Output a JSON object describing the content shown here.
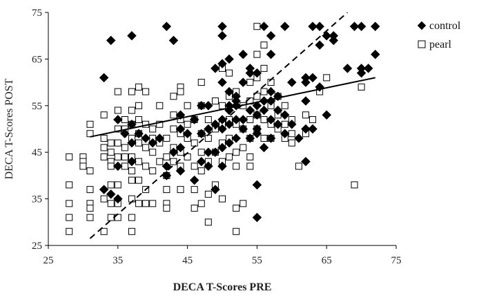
{
  "chart_data": {
    "type": "scatter",
    "xlabel": "DECA T-Scores PRE",
    "ylabel": "DECA T-Scores POST",
    "xlim": [
      25,
      75
    ],
    "ylim": [
      25,
      75
    ],
    "xticks": [
      "25",
      "35",
      "45",
      "55",
      "65",
      "75"
    ],
    "yticks": [
      "25",
      "35",
      "45",
      "55",
      "65",
      "75"
    ],
    "grid": false,
    "legend_position": "top-right",
    "series": [
      {
        "name": "control",
        "marker": "diamond-filled",
        "color": "#000000",
        "trendline": {
          "style": "solid",
          "x": [
            31,
            72
          ],
          "y": [
            48.3,
            61.0
          ]
        },
        "points": [
          [
            33,
            61
          ],
          [
            34,
            69
          ],
          [
            37,
            70
          ],
          [
            42,
            72
          ],
          [
            43,
            69
          ],
          [
            50,
            72
          ],
          [
            50,
            70
          ],
          [
            53,
            66
          ],
          [
            54,
            63
          ],
          [
            56,
            72
          ],
          [
            57,
            70
          ],
          [
            57,
            66
          ],
          [
            59,
            72
          ],
          [
            63,
            72
          ],
          [
            64,
            72
          ],
          [
            65,
            70
          ],
          [
            66,
            70
          ],
          [
            66,
            69
          ],
          [
            69,
            72
          ],
          [
            70,
            72
          ],
          [
            72,
            72
          ],
          [
            72,
            66
          ],
          [
            71,
            63
          ],
          [
            70,
            63
          ],
          [
            70,
            62
          ],
          [
            68,
            63
          ],
          [
            64,
            68
          ],
          [
            64,
            59
          ],
          [
            62,
            60
          ],
          [
            60,
            60
          ],
          [
            62,
            56
          ],
          [
            58,
            57
          ],
          [
            57,
            58
          ],
          [
            56,
            56
          ],
          [
            55,
            55
          ],
          [
            54,
            54
          ],
          [
            52,
            55
          ],
          [
            51,
            58
          ],
          [
            50,
            60
          ],
          [
            49,
            63
          ],
          [
            50,
            64
          ],
          [
            51,
            65
          ],
          [
            54,
            62
          ],
          [
            55,
            62
          ],
          [
            53,
            60
          ],
          [
            52,
            57
          ],
          [
            51,
            54
          ],
          [
            50,
            52
          ],
          [
            48,
            55
          ],
          [
            47,
            55
          ],
          [
            46,
            52
          ],
          [
            44,
            53
          ],
          [
            44,
            50
          ],
          [
            45,
            49
          ],
          [
            47,
            49
          ],
          [
            48,
            50
          ],
          [
            49,
            51
          ],
          [
            50,
            50
          ],
          [
            51,
            51
          ],
          [
            52,
            52
          ],
          [
            53,
            50
          ],
          [
            52,
            48
          ],
          [
            51,
            47
          ],
          [
            50,
            46
          ],
          [
            49,
            45
          ],
          [
            48,
            45
          ],
          [
            47,
            43
          ],
          [
            48,
            42
          ],
          [
            50,
            42
          ],
          [
            49,
            37
          ],
          [
            46,
            39
          ],
          [
            44,
            41
          ],
          [
            42,
            42
          ],
          [
            43,
            45
          ],
          [
            44,
            46
          ],
          [
            41,
            48
          ],
          [
            40,
            47
          ],
          [
            39,
            48
          ],
          [
            38,
            49
          ],
          [
            37,
            51
          ],
          [
            35,
            52
          ],
          [
            36,
            49
          ],
          [
            37,
            47
          ],
          [
            35,
            42
          ],
          [
            37,
            43
          ],
          [
            33,
            37
          ],
          [
            34,
            36
          ],
          [
            35,
            35
          ],
          [
            42,
            40
          ],
          [
            55,
            38
          ],
          [
            55,
            31
          ],
          [
            55,
            50
          ],
          [
            55,
            49
          ],
          [
            57,
            52
          ],
          [
            58,
            51
          ],
          [
            59,
            49
          ],
          [
            60,
            51
          ],
          [
            61,
            48
          ],
          [
            62,
            43
          ],
          [
            62,
            50
          ],
          [
            63,
            50
          ],
          [
            65,
            53
          ],
          [
            62,
            61
          ],
          [
            63,
            61
          ],
          [
            59,
            53
          ],
          [
            56,
            46
          ],
          [
            57,
            48
          ],
          [
            54,
            48
          ],
          [
            53,
            52
          ],
          [
            51,
            55
          ],
          [
            52,
            56
          ],
          [
            55,
            53
          ],
          [
            56,
            54
          ],
          [
            57,
            56
          ],
          [
            58,
            54
          ]
        ]
      },
      {
        "name": "pearl",
        "marker": "square-open",
        "color": "#000000",
        "trendline": {
          "style": "dashed",
          "x": [
            31,
            68
          ],
          "y": [
            26.5,
            75
          ]
        },
        "points": [
          [
            28,
            44
          ],
          [
            28,
            38
          ],
          [
            28,
            34
          ],
          [
            28,
            31
          ],
          [
            28,
            28
          ],
          [
            30,
            44
          ],
          [
            30,
            43
          ],
          [
            30,
            42
          ],
          [
            31,
            51
          ],
          [
            31,
            49
          ],
          [
            31,
            41
          ],
          [
            31,
            37
          ],
          [
            31,
            34
          ],
          [
            31,
            33
          ],
          [
            31,
            31
          ],
          [
            33,
            53
          ],
          [
            33,
            48
          ],
          [
            33,
            46
          ],
          [
            33,
            44
          ],
          [
            33,
            35
          ],
          [
            33,
            28
          ],
          [
            34,
            47
          ],
          [
            34,
            45
          ],
          [
            34,
            43
          ],
          [
            34,
            42
          ],
          [
            34,
            38
          ],
          [
            34,
            34
          ],
          [
            34,
            31
          ],
          [
            35,
            58
          ],
          [
            35,
            54
          ],
          [
            35,
            50
          ],
          [
            35,
            47
          ],
          [
            35,
            44
          ],
          [
            35,
            38
          ],
          [
            35,
            34
          ],
          [
            35,
            31
          ],
          [
            36,
            52
          ],
          [
            36,
            50
          ],
          [
            36,
            46
          ],
          [
            36,
            44
          ],
          [
            36,
            42
          ],
          [
            37,
            58
          ],
          [
            37,
            54
          ],
          [
            37,
            51
          ],
          [
            37,
            48
          ],
          [
            37,
            44
          ],
          [
            37,
            41
          ],
          [
            37,
            39
          ],
          [
            37,
            35
          ],
          [
            37,
            31
          ],
          [
            37,
            28
          ],
          [
            38,
            59
          ],
          [
            38,
            55
          ],
          [
            38,
            52
          ],
          [
            38,
            49
          ],
          [
            38,
            47
          ],
          [
            38,
            43
          ],
          [
            38,
            39
          ],
          [
            38,
            34
          ],
          [
            39,
            58
          ],
          [
            39,
            51
          ],
          [
            39,
            46
          ],
          [
            39,
            42
          ],
          [
            39,
            37
          ],
          [
            39,
            34
          ],
          [
            40,
            50
          ],
          [
            40,
            48
          ],
          [
            40,
            45
          ],
          [
            40,
            41
          ],
          [
            40,
            34
          ],
          [
            41,
            55
          ],
          [
            41,
            51
          ],
          [
            41,
            47
          ],
          [
            41,
            43
          ],
          [
            42,
            48
          ],
          [
            42,
            44
          ],
          [
            42,
            40
          ],
          [
            42,
            37
          ],
          [
            42,
            34
          ],
          [
            42,
            33
          ],
          [
            43,
            57
          ],
          [
            43,
            53
          ],
          [
            43,
            50
          ],
          [
            43,
            46
          ],
          [
            43,
            43
          ],
          [
            44,
            59
          ],
          [
            44,
            58
          ],
          [
            44,
            52
          ],
          [
            44,
            49
          ],
          [
            44,
            45
          ],
          [
            44,
            42
          ],
          [
            44,
            37
          ],
          [
            45,
            55
          ],
          [
            45,
            51
          ],
          [
            45,
            48
          ],
          [
            45,
            44
          ],
          [
            46,
            52
          ],
          [
            46,
            47
          ],
          [
            46,
            42
          ],
          [
            46,
            37
          ],
          [
            46,
            33
          ],
          [
            47,
            60
          ],
          [
            47,
            55
          ],
          [
            47,
            49
          ],
          [
            47,
            45
          ],
          [
            47,
            41
          ],
          [
            47,
            34
          ],
          [
            48,
            52
          ],
          [
            48,
            48
          ],
          [
            48,
            43
          ],
          [
            48,
            36
          ],
          [
            48,
            30
          ],
          [
            49,
            56
          ],
          [
            49,
            50
          ],
          [
            49,
            45
          ],
          [
            49,
            38
          ],
          [
            50,
            63
          ],
          [
            50,
            55
          ],
          [
            50,
            51
          ],
          [
            50,
            47
          ],
          [
            50,
            43
          ],
          [
            50,
            35
          ],
          [
            51,
            62
          ],
          [
            51,
            57
          ],
          [
            51,
            52
          ],
          [
            51,
            48
          ],
          [
            51,
            44
          ],
          [
            52,
            58
          ],
          [
            52,
            51
          ],
          [
            52,
            45
          ],
          [
            52,
            42
          ],
          [
            52,
            33
          ],
          [
            52,
            28
          ],
          [
            53,
            55
          ],
          [
            53,
            50
          ],
          [
            53,
            46
          ],
          [
            53,
            34
          ],
          [
            54,
            60
          ],
          [
            54,
            56
          ],
          [
            54,
            52
          ],
          [
            54,
            48
          ],
          [
            54,
            44
          ],
          [
            54,
            42
          ],
          [
            55,
            72
          ],
          [
            55,
            66
          ],
          [
            55,
            61
          ],
          [
            55,
            57
          ],
          [
            55,
            53
          ],
          [
            55,
            50
          ],
          [
            56,
            68
          ],
          [
            56,
            63
          ],
          [
            56,
            58
          ],
          [
            56,
            52
          ],
          [
            56,
            48
          ],
          [
            57,
            60
          ],
          [
            57,
            55
          ],
          [
            57,
            51
          ],
          [
            57,
            48
          ],
          [
            58,
            57
          ],
          [
            58,
            53
          ],
          [
            58,
            50
          ],
          [
            59,
            55
          ],
          [
            59,
            51
          ],
          [
            59,
            48
          ],
          [
            60,
            52
          ],
          [
            60,
            49
          ],
          [
            60,
            47
          ],
          [
            61,
            42
          ],
          [
            62,
            53
          ],
          [
            62,
            49
          ],
          [
            63,
            52
          ],
          [
            64,
            58
          ],
          [
            65,
            61
          ],
          [
            69,
            38
          ],
          [
            70,
            59
          ]
        ]
      }
    ]
  }
}
